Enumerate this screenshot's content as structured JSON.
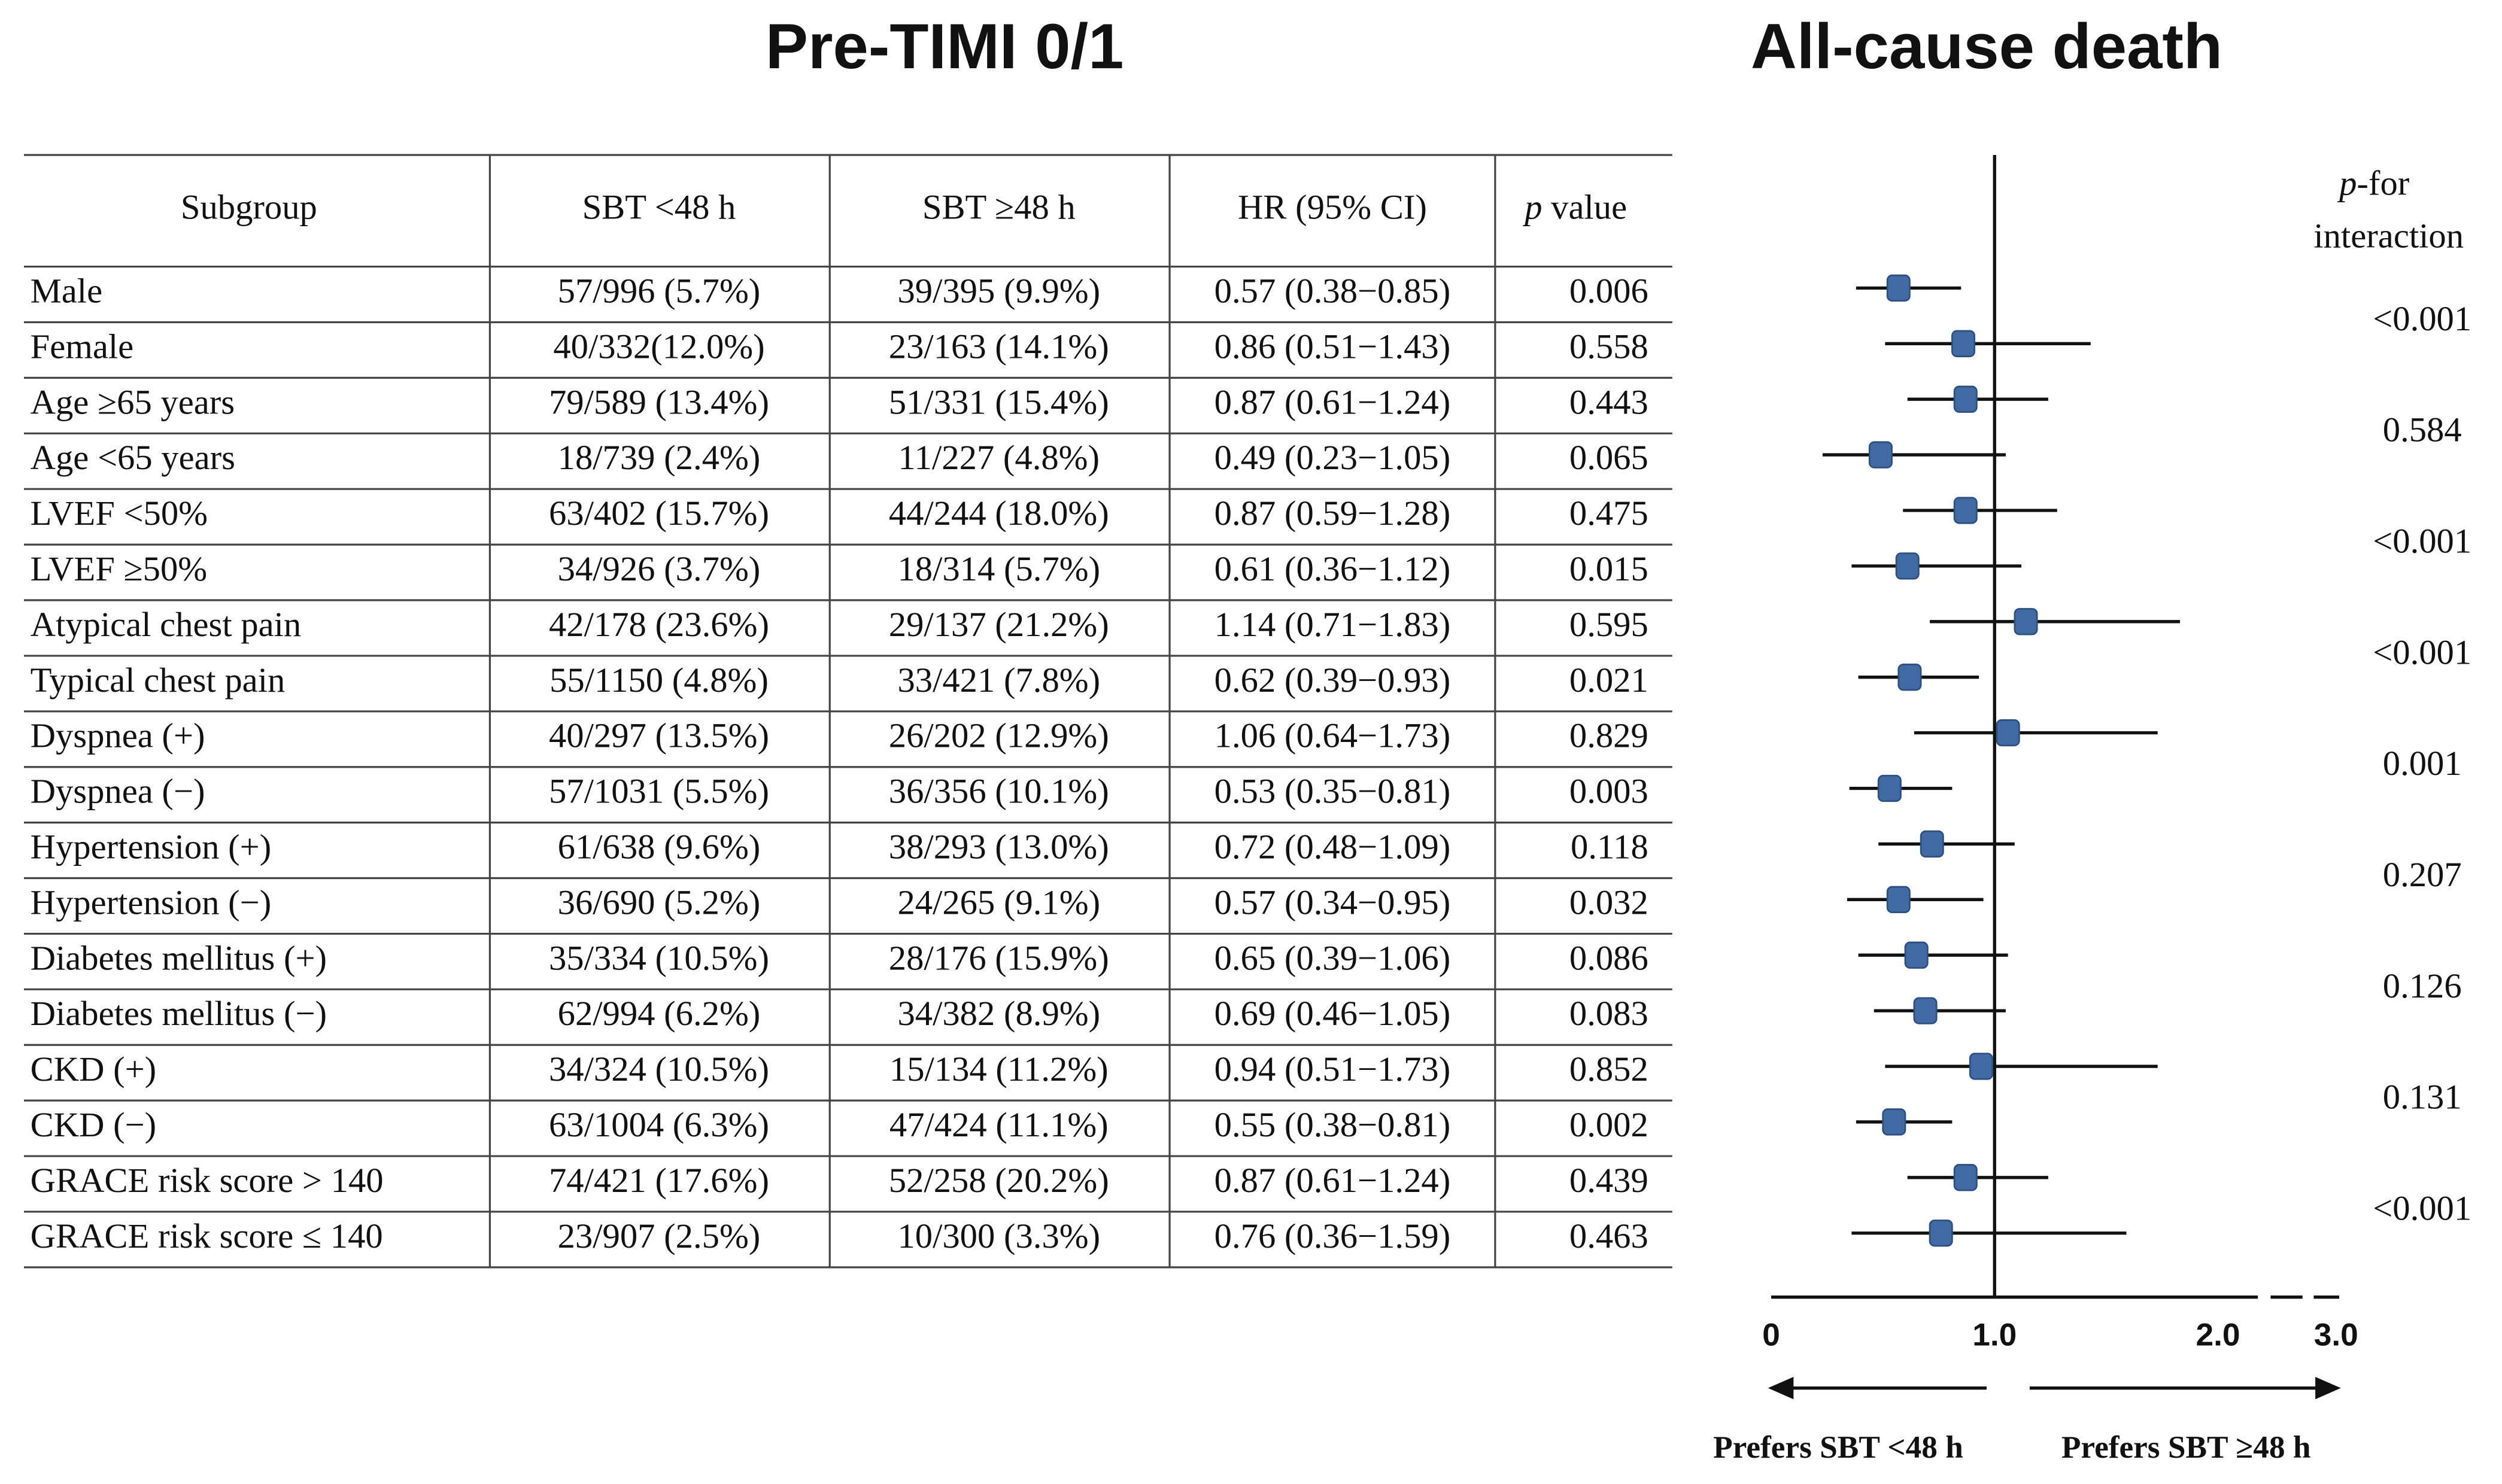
{
  "chart_data": {
    "type": "forest",
    "table_title": "Pre-TIMI 0/1",
    "title": "All-cause death",
    "columns": [
      "Subgroup",
      "SBT <48 h",
      "SBT ≥48 h",
      "HR (95% CI)"
    ],
    "p_header": {
      "italic": "p",
      "rest": "value"
    },
    "interaction_header": {
      "italic": "p",
      "rest": "-for",
      "line2": "interaction"
    },
    "categories": [
      "Male",
      "Female",
      "Age ≥65 years",
      "Age <65 years",
      "LVEF <50%",
      "LVEF ≥50%",
      "Atypical chest pain",
      "Typical chest pain",
      "Dyspnea (+)",
      "Dyspnea (−)",
      "Hypertension (+)",
      "Hypertension (−)",
      "Diabetes mellitus (+)",
      "Diabetes mellitus (−)",
      "CKD (+)",
      "CKD (−)",
      "GRACE risk score > 140",
      "GRACE risk score ≤ 140"
    ],
    "early": [
      "57/996 (5.7%)",
      "40/332(12.0%)",
      "79/589 (13.4%)",
      "18/739 (2.4%)",
      "63/402 (15.7%)",
      "34/926 (3.7%)",
      "42/178 (23.6%)",
      "55/1150 (4.8%)",
      "40/297 (13.5%)",
      "57/1031 (5.5%)",
      "61/638 (9.6%)",
      "36/690 (5.2%)",
      "35/334 (10.5%)",
      "62/994 (6.2%)",
      "34/324 (10.5%)",
      "63/1004 (6.3%)",
      "74/421 (17.6%)",
      "23/907 (2.5%)"
    ],
    "late": [
      "39/395 (9.9%)",
      "23/163 (14.1%)",
      "51/331 (15.4%)",
      "11/227 (4.8%)",
      "44/244 (18.0%)",
      "18/314 (5.7%)",
      "29/137 (21.2%)",
      "33/421 (7.8%)",
      "26/202 (12.9%)",
      "36/356 (10.1%)",
      "38/293 (13.0%)",
      "24/265 (9.1%)",
      "28/176 (15.9%)",
      "34/382 (8.9%)",
      "15/134 (11.2%)",
      "47/424 (11.1%)",
      "52/258 (20.2%)",
      "10/300 (3.3%)"
    ],
    "values": [
      0.57,
      0.86,
      0.87,
      0.49,
      0.87,
      0.61,
      1.14,
      0.62,
      1.06,
      0.53,
      0.72,
      0.57,
      0.65,
      0.69,
      0.94,
      0.55,
      0.87,
      0.76
    ],
    "ci_low": [
      0.38,
      0.51,
      0.61,
      0.23,
      0.59,
      0.36,
      0.71,
      0.39,
      0.64,
      0.35,
      0.48,
      0.34,
      0.39,
      0.46,
      0.51,
      0.38,
      0.61,
      0.36
    ],
    "ci_high": [
      0.85,
      1.43,
      1.24,
      1.05,
      1.28,
      1.12,
      1.83,
      0.93,
      1.73,
      0.81,
      1.09,
      0.95,
      1.06,
      1.05,
      1.73,
      0.81,
      1.24,
      1.59
    ],
    "value_labels": [
      "0.57 (0.38−0.85)",
      "0.86 (0.51−1.43)",
      "0.87 (0.61−1.24)",
      "0.49 (0.23−1.05)",
      "0.87 (0.59−1.28)",
      "0.61 (0.36−1.12)",
      "1.14 (0.71−1.83)",
      "0.62 (0.39−0.93)",
      "1.06 (0.64−1.73)",
      "0.53 (0.35−0.81)",
      "0.72 (0.48−1.09)",
      "0.57 (0.34−0.95)",
      "0.65 (0.39−1.06)",
      "0.69 (0.46−1.05)",
      "0.94 (0.51−1.73)",
      "0.55 (0.38−0.81)",
      "0.87 (0.61−1.24)",
      "0.76 (0.36−1.59)"
    ],
    "p_values": [
      "0.006",
      "0.558",
      "0.443",
      "0.065",
      "0.475",
      "0.015",
      "0.595",
      "0.021",
      "0.829",
      "0.003",
      "0.118",
      "0.032",
      "0.086",
      "0.083",
      "0.852",
      "0.002",
      "0.439",
      "0.463"
    ],
    "p_interaction": [
      "<0.001",
      "0.584",
      "<0.001",
      "<0.001",
      "0.001",
      "0.207",
      "0.126",
      "0.131",
      "<0.001"
    ],
    "xlim": [
      0,
      3
    ],
    "xticks": [
      0,
      {
        "value": 1,
        "label": "1.0"
      },
      {
        "value": 2,
        "label": "2.0"
      },
      {
        "value": 3,
        "label": "3.0"
      }
    ],
    "axis_break": true,
    "arrow_labels": [
      "Prefers SBT <48 h",
      "Prefers SBT ≥48 h"
    ],
    "color": "#3f6aa3"
  }
}
